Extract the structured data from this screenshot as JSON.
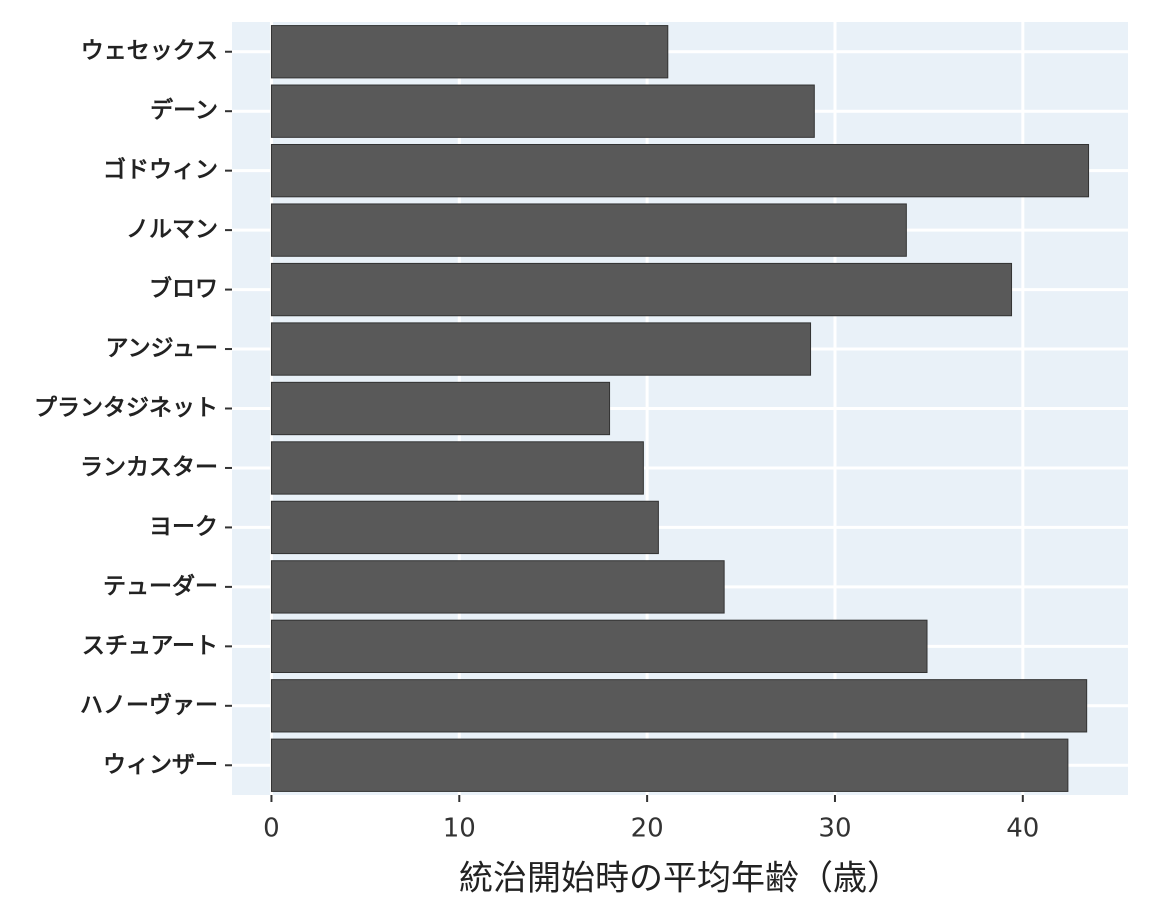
{
  "chart_data": {
    "type": "barh",
    "x_label": "統治開始時の平均年齢（歳）",
    "categories": [
      "ウェセックス",
      "デーン",
      "ゴドウィン",
      "ノルマン",
      "ブロワ",
      "アンジュー",
      "プランタジネット",
      "ランカスター",
      "ヨーク",
      "テューダー",
      "スチュアート",
      "ハノーヴァー",
      "ウィンザー"
    ],
    "values": [
      21.1,
      28.9,
      43.5,
      33.8,
      39.4,
      28.7,
      18.0,
      19.8,
      20.6,
      24.1,
      34.9,
      43.4,
      42.4
    ],
    "color": "#595959",
    "xlim": [
      -2.1,
      45.6
    ],
    "xticks": [
      0,
      10,
      20,
      30,
      40
    ],
    "grid": true
  }
}
